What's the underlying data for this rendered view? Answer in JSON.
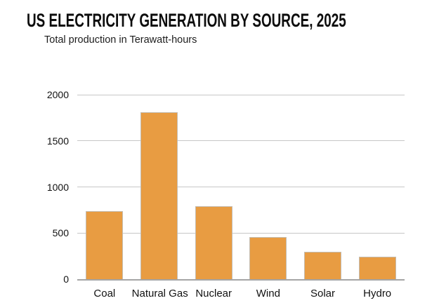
{
  "chart_data": {
    "type": "bar",
    "title": "US ELECTRICITY GENERATION BY SOURCE, 2025",
    "subtitle": "Total production in Terawatt-hours",
    "categories": [
      "Coal",
      "Natural Gas",
      "Nuclear",
      "Wind",
      "Solar",
      "Hydro"
    ],
    "values": [
      740,
      1810,
      790,
      455,
      300,
      240
    ],
    "unit": "TWh",
    "xlabel": "",
    "ylabel": "",
    "ylim": [
      0,
      2000
    ],
    "yticks": [
      0,
      500,
      1000,
      1500,
      2000
    ],
    "grid": true,
    "legend": "none",
    "colors": {
      "bar_fill": "#e89c42",
      "bar_border": "#c4bcb0",
      "gridline": "#c7c7c7",
      "axis_line": "#a5a5a5",
      "text": "#111111"
    }
  }
}
